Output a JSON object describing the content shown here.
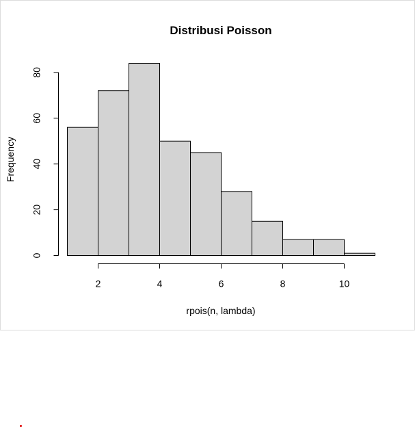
{
  "chart_data": {
    "type": "bar",
    "title": "Distribusi Poisson",
    "xlabel": "rpois(n, lambda)",
    "ylabel": "Frequency",
    "bins": [
      {
        "x0": 1,
        "x1": 2,
        "count": 56
      },
      {
        "x0": 2,
        "x1": 3,
        "count": 72
      },
      {
        "x0": 3,
        "x1": 4,
        "count": 84
      },
      {
        "x0": 4,
        "x1": 5,
        "count": 50
      },
      {
        "x0": 5,
        "x1": 6,
        "count": 45
      },
      {
        "x0": 6,
        "x1": 7,
        "count": 28
      },
      {
        "x0": 7,
        "x1": 8,
        "count": 15
      },
      {
        "x0": 8,
        "x1": 9,
        "count": 7
      },
      {
        "x0": 9,
        "x1": 10,
        "count": 7
      },
      {
        "x0": 10,
        "x1": 11,
        "count": 1
      }
    ],
    "xlim": [
      1,
      11
    ],
    "ylim": [
      0,
      84
    ],
    "x_ticks": [
      2,
      4,
      6,
      8,
      10
    ],
    "y_ticks": [
      0,
      20,
      40,
      60,
      80
    ],
    "grid": false,
    "bar_fill": "#d3d3d3",
    "bar_stroke": "#000000"
  }
}
